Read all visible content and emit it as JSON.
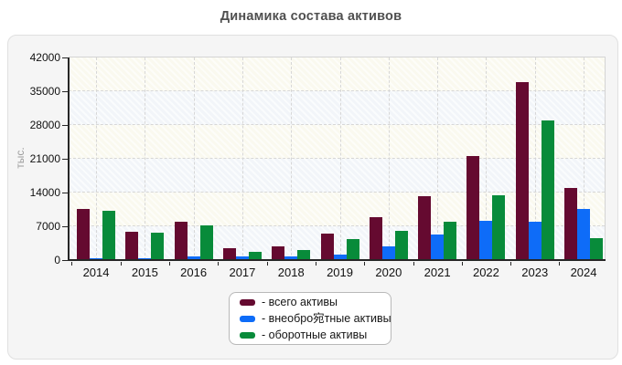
{
  "title": "Динамика состава активов",
  "colors": {
    "total": "#650a30",
    "noncurrent": "#0e6cf8",
    "current": "#088b3a",
    "panel_background": "#f5f5f5",
    "plot_band_ivory": "#faf9ef",
    "plot_band_blue": "#f2f5f9",
    "gridline": "#d7d7d7",
    "axis": "#262626",
    "title_text": "#4f4f4f",
    "ylabel_text": "#9b9b9b"
  },
  "chart_data": {
    "type": "bar",
    "title": "Динамика состава активов",
    "xlabel": "",
    "ylabel": "тыс.",
    "ylim": [
      0,
      42000
    ],
    "yticks": [
      0,
      7000,
      14000,
      21000,
      28000,
      35000,
      42000
    ],
    "grid": true,
    "legend_position": "bottom-center",
    "categories": [
      "2014",
      "2015",
      "2016",
      "2017",
      "2018",
      "2019",
      "2020",
      "2021",
      "2022",
      "2023",
      "2024"
    ],
    "series": [
      {
        "key": "total",
        "name": "всего активы",
        "legend_label": "- всего активы",
        "color": "#650a30",
        "values": [
          10600,
          5900,
          7900,
          2400,
          2900,
          5500,
          8800,
          13200,
          21500,
          36900,
          15000
        ]
      },
      {
        "key": "noncurrent",
        "name": "внеоборотные активы",
        "legend_label": "- внеобро宛тные активы",
        "color": "#0e6cf8",
        "values": [
          400,
          300,
          800,
          700,
          750,
          1200,
          2800,
          5300,
          8100,
          7900,
          10500
        ]
      },
      {
        "key": "current",
        "name": "оборотные активы",
        "legend_label": "- оборотные активы",
        "color": "#088b3a",
        "values": [
          10200,
          5600,
          7100,
          1700,
          2150,
          4300,
          6000,
          7900,
          13400,
          29000,
          4500
        ]
      }
    ]
  }
}
